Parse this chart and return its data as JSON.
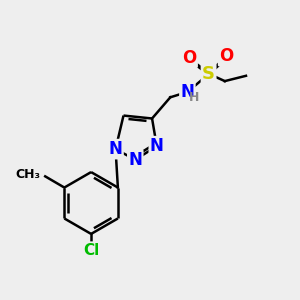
{
  "bg_color": "#eeeeee",
  "bond_color": "#000000",
  "bond_width": 1.8,
  "atom_colors": {
    "N": "#0000ff",
    "O": "#ff0000",
    "S": "#cccc00",
    "Cl": "#00bb00",
    "H": "#888888",
    "C": "#000000"
  },
  "figsize": [
    3.0,
    3.0
  ],
  "dpi": 100
}
